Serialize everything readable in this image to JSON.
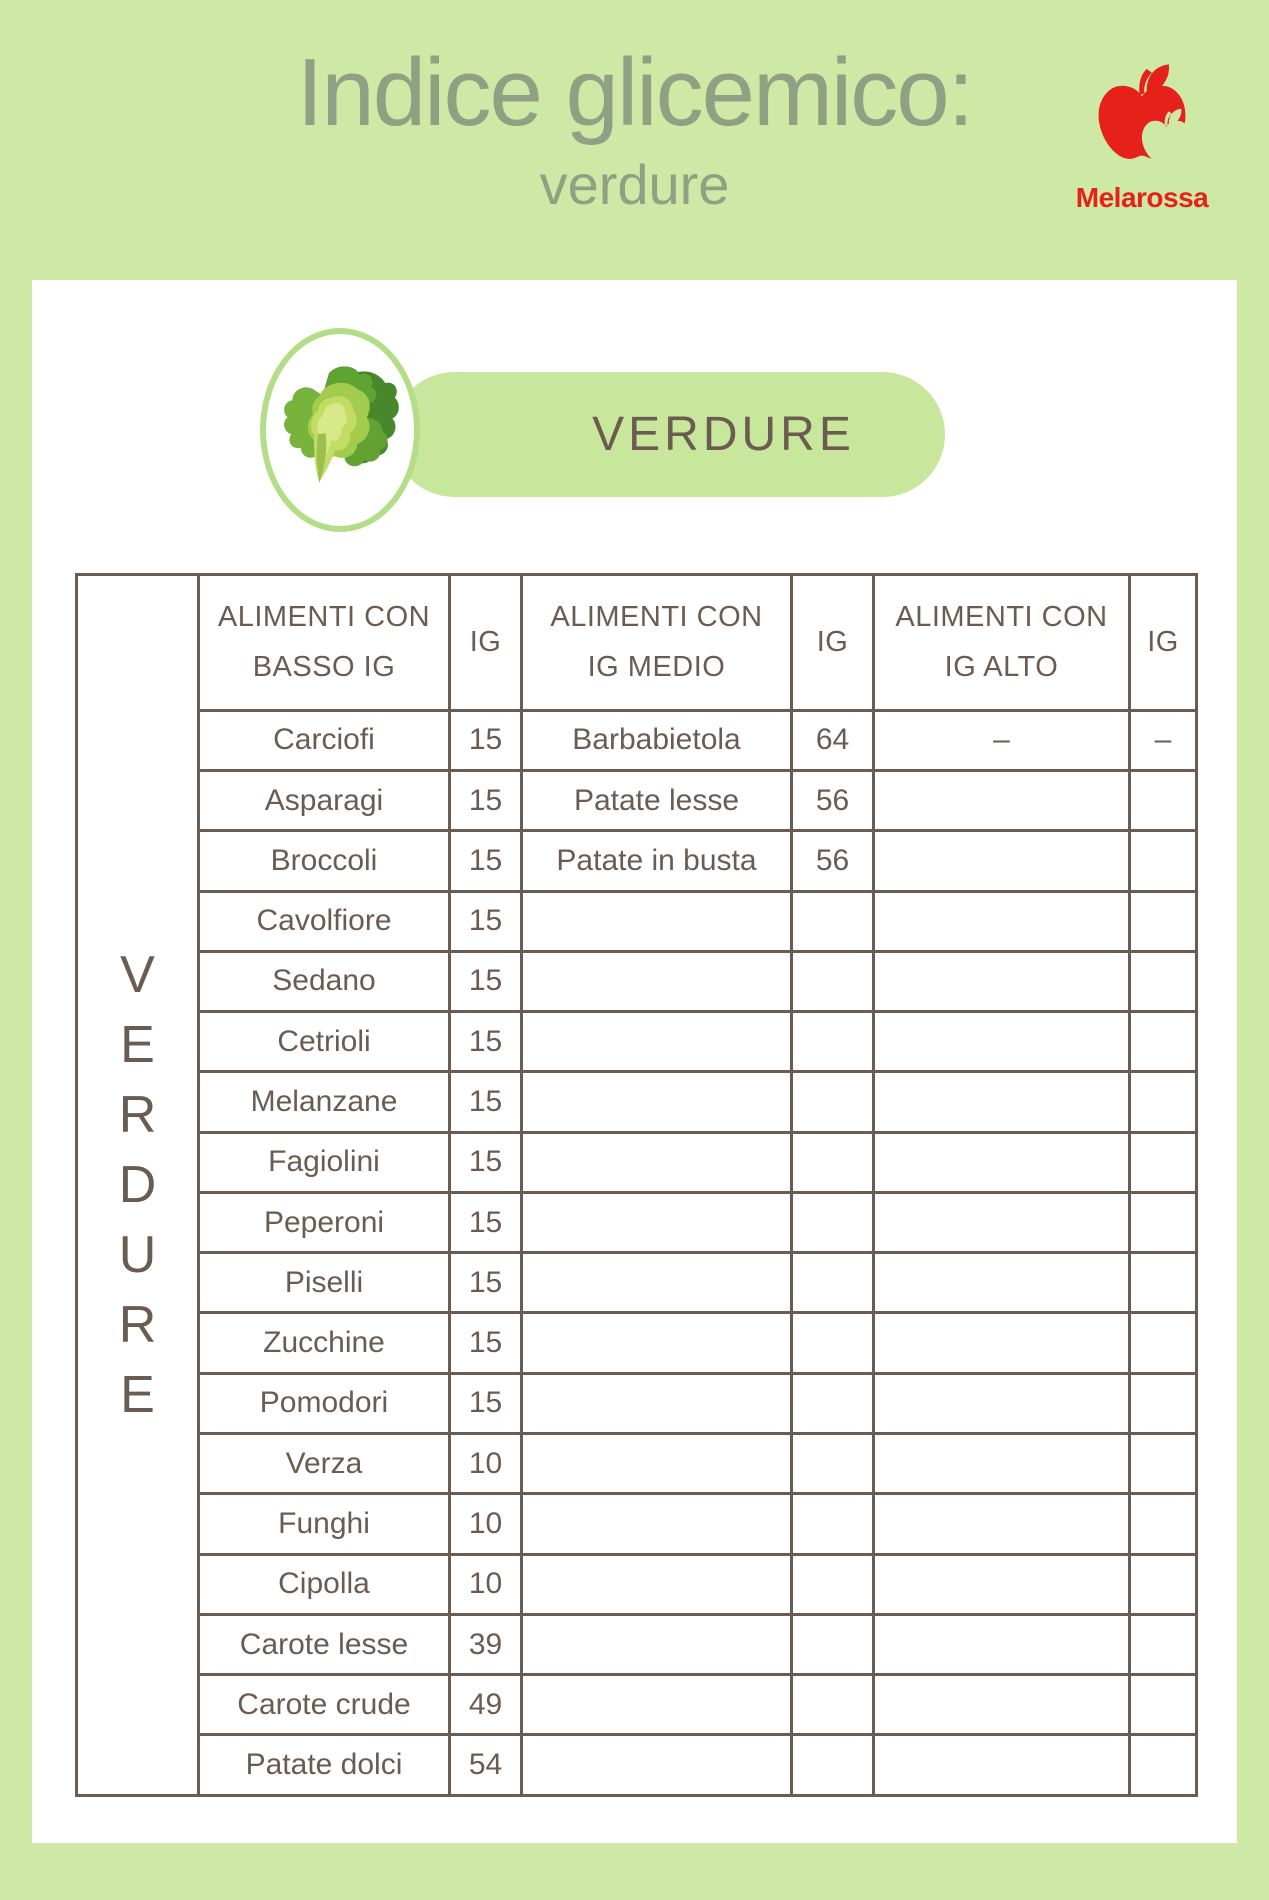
{
  "page": {
    "title": "Indice glicemico:",
    "subtitle": "verdure"
  },
  "logo": {
    "name": "Melarossa",
    "icon": "apple-logo-icon",
    "color": "#e6201b"
  },
  "badge": {
    "label": "VERDURE",
    "icon": "lettuce-icon"
  },
  "table": {
    "side_label": "VERDURE",
    "columns": [
      {
        "label": "ALIMENTI CON\nBASSO IG"
      },
      {
        "label": "IG"
      },
      {
        "label": "ALIMENTI CON\nIG MEDIO"
      },
      {
        "label": "IG"
      },
      {
        "label": "ALIMENTI CON\nIG ALTO"
      },
      {
        "label": "IG"
      }
    ],
    "rows": [
      [
        "Carciofi",
        "15",
        "Barbabietola",
        "64",
        "–",
        "–"
      ],
      [
        "Asparagi",
        "15",
        "Patate lesse",
        "56",
        "",
        ""
      ],
      [
        "Broccoli",
        "15",
        "Patate in busta",
        "56",
        "",
        ""
      ],
      [
        "Cavolfiore",
        "15",
        "",
        "",
        "",
        ""
      ],
      [
        "Sedano",
        "15",
        "",
        "",
        "",
        ""
      ],
      [
        "Cetrioli",
        "15",
        "",
        "",
        "",
        ""
      ],
      [
        "Melanzane",
        "15",
        "",
        "",
        "",
        ""
      ],
      [
        "Fagiolini",
        "15",
        "",
        "",
        "",
        ""
      ],
      [
        "Peperoni",
        "15",
        "",
        "",
        "",
        ""
      ],
      [
        "Piselli",
        "15",
        "",
        "",
        "",
        ""
      ],
      [
        "Zucchine",
        "15",
        "",
        "",
        "",
        ""
      ],
      [
        "Pomodori",
        "15",
        "",
        "",
        "",
        ""
      ],
      [
        "Verza",
        "10",
        "",
        "",
        "",
        ""
      ],
      [
        "Funghi",
        "10",
        "",
        "",
        "",
        ""
      ],
      [
        "Cipolla",
        "10",
        "",
        "",
        "",
        ""
      ],
      [
        "Carote lesse",
        "39",
        "",
        "",
        "",
        ""
      ],
      [
        "Carote crude",
        "49",
        "",
        "",
        "",
        ""
      ],
      [
        "Patate dolci",
        "54",
        "",
        "",
        "",
        ""
      ]
    ]
  },
  "colors": {
    "background_green": "#cee9a6",
    "pill_green": "#c8e79c",
    "circle_border_green": "#b4dd88",
    "title_green": "#8fa083",
    "table_brown": "#6a5c50",
    "brand_red": "#e6201b",
    "card_white": "#ffffff"
  }
}
